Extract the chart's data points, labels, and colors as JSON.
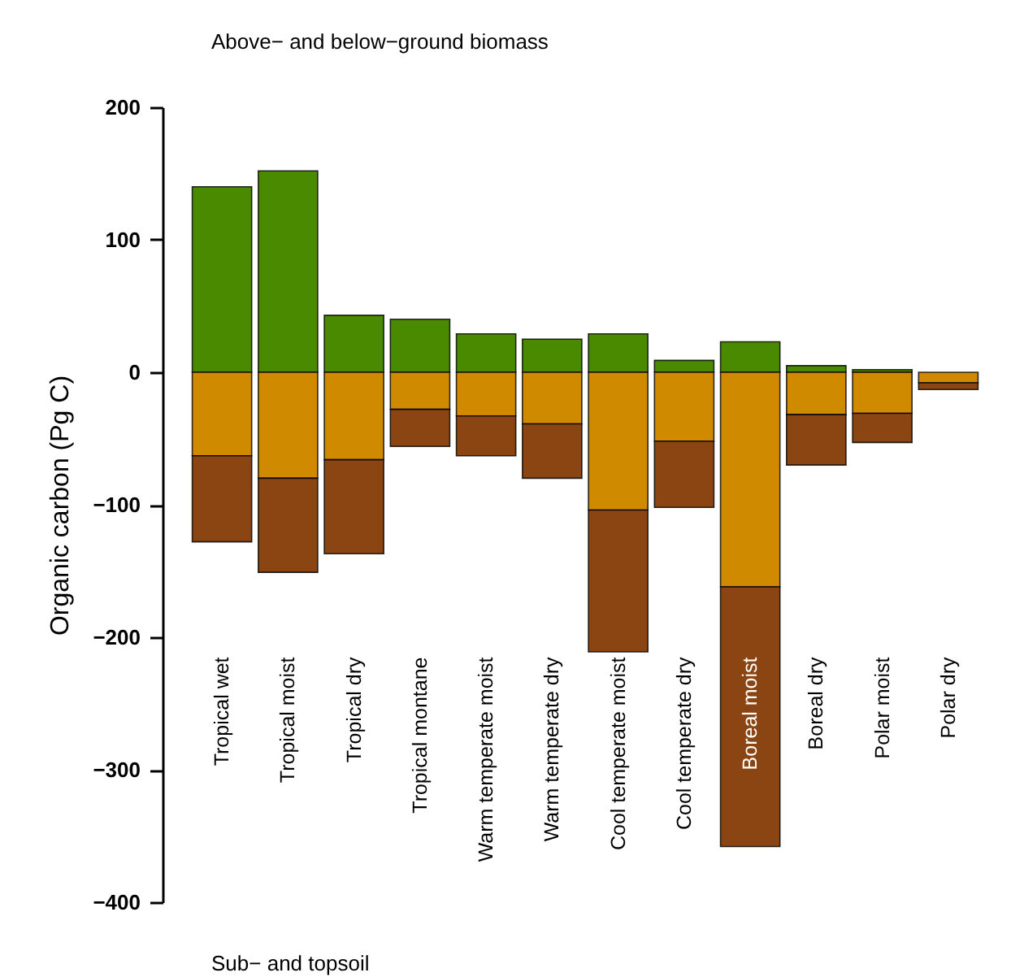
{
  "chart_data": {
    "type": "bar",
    "stacked": true,
    "ylabel": "Organic carbon (Pg C)",
    "categories": [
      "Tropical wet",
      "Tropical moist",
      "Tropical dry",
      "Tropical montane",
      "Warm temperate moist",
      "Warm temperate dry",
      "Cool temperate moist",
      "Cool temperate dry",
      "Boreal moist",
      "Boreal dry",
      "Polar moist",
      "Polar dry"
    ],
    "series": [
      {
        "color": "#4a8a00",
        "values": [
          140,
          152,
          43,
          40,
          29,
          25,
          29,
          9,
          23,
          5,
          2,
          null
        ]
      },
      {
        "color": "#d08a00",
        "values": [
          -63,
          -80,
          -66,
          -28,
          -33,
          -39,
          -104,
          -52,
          -162,
          -32,
          -31,
          -8
        ]
      },
      {
        "color": "#8b4513",
        "values": [
          -65,
          -71,
          -71,
          -28,
          -30,
          -41,
          -107,
          -50,
          -196,
          -38,
          -22,
          -5
        ]
      }
    ],
    "ylim": [
      -400,
      200
    ],
    "yticks": [
      -400,
      -300,
      -200,
      -100,
      0,
      100,
      200
    ],
    "grid": false,
    "annotations": [
      "Above− and below−ground biomass",
      "Sub− and topsoil"
    ]
  }
}
